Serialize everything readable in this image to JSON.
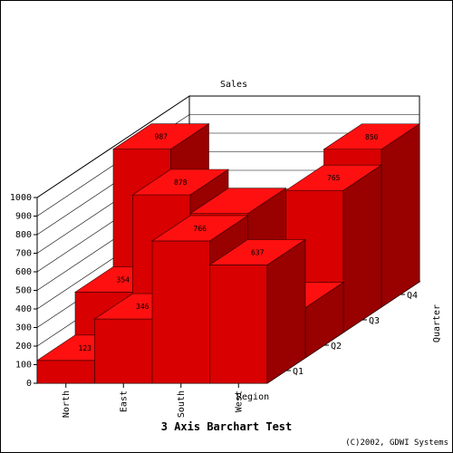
{
  "chart_data": {
    "type": "bar",
    "title": "3 Axis Barchart Test",
    "y_axis_label": "Sales",
    "x_axis_label": "Region",
    "z_axis_label": "Quarter",
    "credit": "(C)2002, GDWI Systems",
    "ylim": [
      0,
      1000
    ],
    "y_ticks": [
      "0",
      "100",
      "200",
      "300",
      "400",
      "500",
      "600",
      "700",
      "800",
      "900",
      "1000"
    ],
    "categories": [
      "North",
      "East",
      "South",
      "West"
    ],
    "series": [
      {
        "name": "Q1",
        "values": [
          123,
          346,
          766,
          637
        ],
        "labels": [
          "123",
          "346",
          "766",
          "637"
        ]
      },
      {
        "name": "Q2",
        "values": [
          354,
          878,
          777,
          270
        ],
        "labels": [
          "354",
          "878",
          "",
          ""
        ]
      },
      {
        "name": "Q3",
        "values": [
          987,
          520,
          180,
          765
        ],
        "labels": [
          "987",
          "",
          "",
          "765"
        ]
      },
      {
        "name": "Q4",
        "values": [
          0,
          0,
          0,
          850
        ],
        "labels": [
          "",
          "",
          "",
          "850"
        ]
      }
    ],
    "bar_color": "#d80000",
    "bar_top_color": "#ff1010",
    "bar_side_color": "#990000"
  }
}
